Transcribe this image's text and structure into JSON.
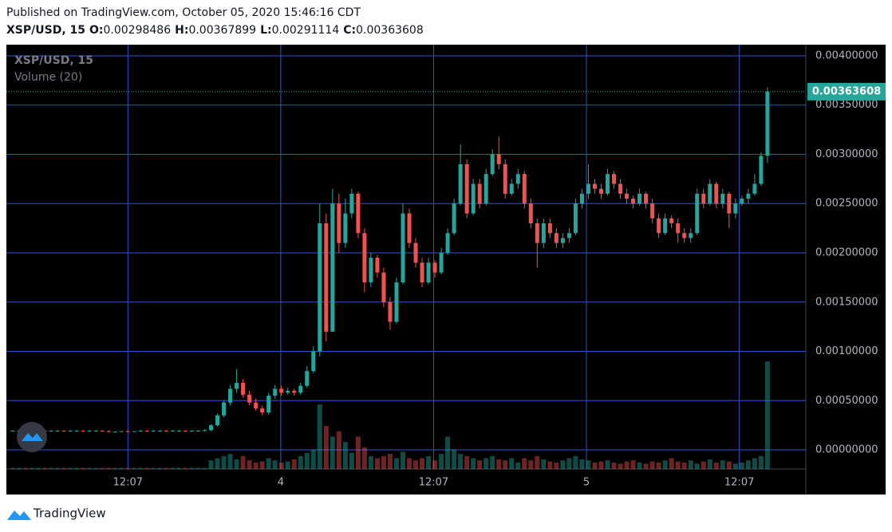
{
  "header": "Published on TradingView.com, October 05, 2020 15:46:16 CDT",
  "footer": "TradingView",
  "chart_data": {
    "type": "candlestick",
    "symbol": "XSP/USD, 15",
    "volume_label": "Volume (20)",
    "ohlc_labels": [
      "O:",
      "H:",
      "L:",
      "C:"
    ],
    "up_color": "#26a69a",
    "down_color": "#ef5350",
    "grid": true,
    "ylim": [
      -0.000194,
      0.004113
    ],
    "yticks": [
      {
        "value": 0.004,
        "label": "0.00400000"
      },
      {
        "value": 0.0035,
        "label": "0.00350000"
      },
      {
        "value": 0.003,
        "label": "0.00300000"
      },
      {
        "value": 0.0025,
        "label": "0.00250000"
      },
      {
        "value": 0.002,
        "label": "0.00200000"
      },
      {
        "value": 0.0015,
        "label": "0.00150000"
      },
      {
        "value": 0.001,
        "label": "0.00100000"
      },
      {
        "value": 0.0005,
        "label": "0.00050000"
      },
      {
        "value": 0,
        "label": "0.00000000"
      }
    ],
    "xlim": [
      -1,
      124
    ],
    "xticks": [
      {
        "value": 18,
        "label": "12:07"
      },
      {
        "value": 41.9,
        "label": "4"
      },
      {
        "value": 65.8,
        "label": "12:07"
      },
      {
        "value": 89.7,
        "label": "5"
      },
      {
        "value": 113.6,
        "label": "12:07"
      }
    ],
    "candles": [
      [
        0.000195,
        0.0002,
        0.00019,
        0.000195
      ],
      [
        0.000195,
        0.0002,
        0.00019,
        0.000195
      ],
      [
        0.000195,
        0.0002,
        0.00019,
        0.00019
      ],
      [
        0.00019,
        0.0002,
        0.00019,
        0.000195
      ],
      [
        0.000195,
        0.0002,
        0.00019,
        0.000195
      ],
      [
        0.000195,
        0.0002,
        0.00019,
        0.00019
      ],
      [
        0.00019,
        0.0002,
        0.00019,
        0.000195
      ],
      [
        0.000195,
        0.0002,
        0.00019,
        0.000195
      ],
      [
        0.000195,
        0.0002,
        0.00019,
        0.00019
      ],
      [
        0.00019,
        0.0002,
        0.00019,
        0.000195
      ],
      [
        0.000195,
        0.0002,
        0.00019,
        0.000195
      ],
      [
        0.000195,
        0.0002,
        0.00019,
        0.00019
      ],
      [
        0.00019,
        0.0002,
        0.00019,
        0.000195
      ],
      [
        0.000195,
        0.0002,
        0.00019,
        0.000195
      ],
      [
        0.000195,
        0.0002,
        0.00019,
        0.00019
      ],
      [
        0.00019,
        0.0002,
        0.00018,
        0.000185
      ],
      [
        0.000185,
        0.00019,
        0.00018,
        0.000185
      ],
      [
        0.000185,
        0.00019,
        0.00018,
        0.00019
      ],
      [
        0.00019,
        0.0002,
        0.00018,
        0.000185
      ],
      [
        0.000185,
        0.00019,
        0.00018,
        0.00019
      ],
      [
        0.00019,
        0.0002,
        0.00019,
        0.000195
      ],
      [
        0.000195,
        0.0002,
        0.00019,
        0.00019
      ],
      [
        0.00019,
        0.0002,
        0.00019,
        0.000195
      ],
      [
        0.000195,
        0.0002,
        0.00019,
        0.000195
      ],
      [
        0.000195,
        0.0002,
        0.00019,
        0.00019
      ],
      [
        0.00019,
        0.0002,
        0.00019,
        0.000195
      ],
      [
        0.000195,
        0.0002,
        0.00019,
        0.000195
      ],
      [
        0.000195,
        0.0002,
        0.00019,
        0.00019
      ],
      [
        0.00019,
        0.0002,
        0.00019,
        0.000195
      ],
      [
        0.000195,
        0.0002,
        0.00019,
        0.000195
      ],
      [
        0.000195,
        0.00021,
        0.00019,
        0.0002
      ],
      [
        0.0002,
        0.00026,
        0.00019,
        0.00025
      ],
      [
        0.00025,
        0.00037,
        0.00024,
        0.00035
      ],
      [
        0.00035,
        0.0005,
        0.00033,
        0.00048
      ],
      [
        0.00048,
        0.00066,
        0.00045,
        0.00062
      ],
      [
        0.00062,
        0.00082,
        0.00058,
        0.00068
      ],
      [
        0.00068,
        0.00072,
        0.00053,
        0.00056
      ],
      [
        0.00056,
        0.0006,
        0.00045,
        0.00048
      ],
      [
        0.00048,
        0.00052,
        0.0004,
        0.00042
      ],
      [
        0.00042,
        0.00045,
        0.00035,
        0.00038
      ],
      [
        0.00038,
        0.00058,
        0.00036,
        0.00055
      ],
      [
        0.00055,
        0.00066,
        0.00052,
        0.00062
      ],
      [
        0.00062,
        0.00065,
        0.00055,
        0.00058
      ],
      [
        0.00058,
        0.00063,
        0.00056,
        0.0006
      ],
      [
        0.0006,
        0.00062,
        0.00055,
        0.00058
      ],
      [
        0.00058,
        0.00068,
        0.00056,
        0.00065
      ],
      [
        0.00065,
        0.00085,
        0.00063,
        0.0008
      ],
      [
        0.0008,
        0.00105,
        0.00078,
        0.001
      ],
      [
        0.001,
        0.0025,
        0.00095,
        0.0023
      ],
      [
        0.0023,
        0.0024,
        0.0011,
        0.0012
      ],
      [
        0.0012,
        0.00265,
        0.0012,
        0.0025
      ],
      [
        0.0025,
        0.0026,
        0.002,
        0.0021
      ],
      [
        0.0021,
        0.00255,
        0.00205,
        0.0024
      ],
      [
        0.0024,
        0.00265,
        0.00235,
        0.0026
      ],
      [
        0.0026,
        0.00262,
        0.00215,
        0.0022
      ],
      [
        0.0022,
        0.00225,
        0.0016,
        0.0017
      ],
      [
        0.0017,
        0.002,
        0.00165,
        0.00195
      ],
      [
        0.00195,
        0.00198,
        0.00175,
        0.0018
      ],
      [
        0.0018,
        0.00185,
        0.00145,
        0.0015
      ],
      [
        0.0015,
        0.00155,
        0.00122,
        0.0013
      ],
      [
        0.0013,
        0.00175,
        0.00128,
        0.0017
      ],
      [
        0.0017,
        0.0025,
        0.00168,
        0.0024
      ],
      [
        0.0024,
        0.00245,
        0.00205,
        0.0021
      ],
      [
        0.0021,
        0.00215,
        0.00185,
        0.0019
      ],
      [
        0.0019,
        0.00195,
        0.00165,
        0.0017
      ],
      [
        0.0017,
        0.00195,
        0.00168,
        0.0019
      ],
      [
        0.0019,
        0.00193,
        0.00175,
        0.0018
      ],
      [
        0.0018,
        0.00205,
        0.00178,
        0.002
      ],
      [
        0.002,
        0.00225,
        0.00198,
        0.0022
      ],
      [
        0.0022,
        0.00255,
        0.00218,
        0.0025
      ],
      [
        0.0025,
        0.0031,
        0.00248,
        0.0029
      ],
      [
        0.0029,
        0.00295,
        0.00235,
        0.0024
      ],
      [
        0.0024,
        0.00275,
        0.00238,
        0.0027
      ],
      [
        0.0027,
        0.00275,
        0.00245,
        0.0025
      ],
      [
        0.0025,
        0.00285,
        0.00248,
        0.0028
      ],
      [
        0.0028,
        0.00305,
        0.00278,
        0.003
      ],
      [
        0.003,
        0.00318,
        0.00285,
        0.0029
      ],
      [
        0.0029,
        0.00295,
        0.00255,
        0.0026
      ],
      [
        0.0026,
        0.00275,
        0.00258,
        0.0027
      ],
      [
        0.0027,
        0.00285,
        0.00265,
        0.0028
      ],
      [
        0.0028,
        0.00283,
        0.00245,
        0.0025
      ],
      [
        0.0025,
        0.00255,
        0.00225,
        0.0023
      ],
      [
        0.0023,
        0.00235,
        0.00185,
        0.0021
      ],
      [
        0.0021,
        0.00235,
        0.00205,
        0.0023
      ],
      [
        0.0023,
        0.00235,
        0.00215,
        0.0022
      ],
      [
        0.0022,
        0.00225,
        0.00205,
        0.0021
      ],
      [
        0.0021,
        0.0022,
        0.00205,
        0.00215
      ],
      [
        0.00215,
        0.00225,
        0.0021,
        0.0022
      ],
      [
        0.0022,
        0.00255,
        0.00218,
        0.0025
      ],
      [
        0.0025,
        0.00265,
        0.00245,
        0.0026
      ],
      [
        0.0026,
        0.0029,
        0.00255,
        0.0027
      ],
      [
        0.0027,
        0.00275,
        0.0026,
        0.00265
      ],
      [
        0.00265,
        0.0027,
        0.00255,
        0.0026
      ],
      [
        0.0026,
        0.00285,
        0.00258,
        0.0028
      ],
      [
        0.0028,
        0.00283,
        0.00265,
        0.0027
      ],
      [
        0.0027,
        0.00275,
        0.00255,
        0.0026
      ],
      [
        0.0026,
        0.00265,
        0.0025,
        0.00255
      ],
      [
        0.00255,
        0.00258,
        0.00245,
        0.0025
      ],
      [
        0.0025,
        0.00265,
        0.00248,
        0.0026
      ],
      [
        0.0026,
        0.00262,
        0.00245,
        0.0025
      ],
      [
        0.0025,
        0.00255,
        0.0023,
        0.00235
      ],
      [
        0.00235,
        0.0024,
        0.00215,
        0.0022
      ],
      [
        0.0022,
        0.0024,
        0.00218,
        0.00235
      ],
      [
        0.00235,
        0.00238,
        0.00225,
        0.0023
      ],
      [
        0.0023,
        0.00235,
        0.0021,
        0.0022
      ],
      [
        0.0022,
        0.00225,
        0.0021,
        0.00215
      ],
      [
        0.00215,
        0.00225,
        0.0021,
        0.0022
      ],
      [
        0.0022,
        0.00265,
        0.00218,
        0.0026
      ],
      [
        0.0026,
        0.00265,
        0.00245,
        0.0025
      ],
      [
        0.0025,
        0.00275,
        0.00248,
        0.0027
      ],
      [
        0.0027,
        0.00272,
        0.00245,
        0.0025
      ],
      [
        0.0025,
        0.00265,
        0.00245,
        0.0026
      ],
      [
        0.0026,
        0.00262,
        0.00225,
        0.0024
      ],
      [
        0.0024,
        0.00255,
        0.00235,
        0.0025
      ],
      [
        0.0025,
        0.00258,
        0.00248,
        0.00255
      ],
      [
        0.00255,
        0.00265,
        0.0025,
        0.0026
      ],
      [
        0.0026,
        0.0028,
        0.00258,
        0.0027
      ],
      [
        0.0027,
        0.00302,
        0.00268,
        0.00298486
      ],
      [
        0.00298486,
        0.00367899,
        0.00291114,
        0.00363608
      ]
    ],
    "volume": [
      1,
      1,
      1,
      1,
      1,
      1,
      1,
      1,
      1,
      1,
      1,
      1,
      1,
      1,
      1,
      1,
      1,
      1,
      1,
      1,
      1,
      1,
      1,
      1,
      1,
      1,
      1,
      1,
      1,
      1,
      1,
      8,
      10,
      12,
      14,
      9,
      12,
      8,
      6,
      7,
      10,
      8,
      6,
      7,
      9,
      12,
      15,
      18,
      60,
      40,
      30,
      35,
      25,
      15,
      30,
      20,
      12,
      10,
      12,
      14,
      10,
      16,
      10,
      8,
      10,
      12,
      8,
      14,
      30,
      18,
      14,
      12,
      10,
      8,
      10,
      12,
      9,
      8,
      10,
      6,
      10,
      8,
      12,
      9,
      7,
      6,
      8,
      10,
      12,
      9,
      8,
      6,
      7,
      8,
      6,
      5,
      7,
      8,
      6,
      5,
      7,
      6,
      8,
      10,
      7,
      6,
      8,
      5,
      7,
      9,
      6,
      8,
      7,
      5,
      6,
      8,
      10,
      12,
      100
    ]
  }
}
